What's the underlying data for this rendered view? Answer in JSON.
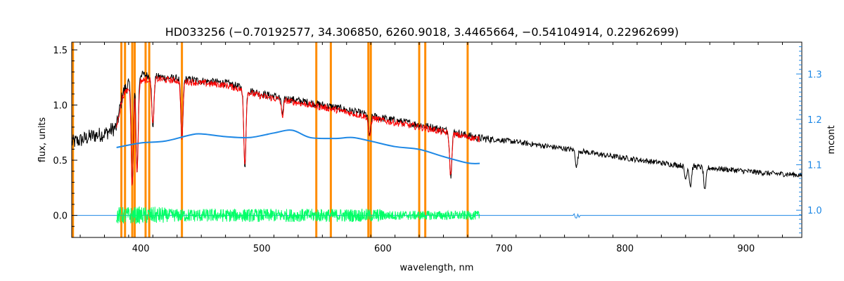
{
  "chart_data": {
    "type": "line",
    "title": "HD033256   (−0.70192577, 34.306850, 6260.9018, 3.4465664, −0.54104914, 0.22962699)",
    "xlabel": "wavelength, nm",
    "ylabel": "flux, units",
    "y2label": "mcont",
    "xlim": [
      343,
      946
    ],
    "ylim": [
      -0.2,
      1.57
    ],
    "y2lim": [
      0.94,
      1.37
    ],
    "x_ticks": [
      400,
      500,
      600,
      700,
      800,
      900
    ],
    "y_ticks": [
      0.0,
      0.5,
      1.0,
      1.5
    ],
    "y2_ticks": [
      1.0,
      1.1,
      1.2,
      1.3
    ],
    "x_tick_labels": [
      "400",
      "500",
      "600",
      "700",
      "800",
      "900"
    ],
    "y_tick_labels": [
      "0.0",
      "0.5",
      "1.0",
      "1.5"
    ],
    "y2_tick_labels": [
      "1.0",
      "1.1",
      "1.2",
      "1.3"
    ],
    "colors": {
      "observed": "#000000",
      "model": "#ff0000",
      "continuum": "#1e88e5",
      "residual": "#00ff66",
      "masks": "#ff8c00",
      "right_axis": "#1e88e5"
    },
    "mask_lines_nm": [
      344,
      384,
      387,
      393,
      395,
      404,
      407,
      434,
      545,
      557,
      588,
      590,
      630,
      635,
      670
    ],
    "series": [
      {
        "name": "observed flux",
        "axis": "left",
        "x": [
          343,
          350,
          360,
          370,
          380,
          385,
          390,
          395,
          400,
          410,
          420,
          430,
          440,
          450,
          460,
          470,
          480,
          490,
          500,
          520,
          540,
          560,
          580,
          600,
          620,
          640,
          660,
          680,
          700,
          720,
          740,
          760,
          780,
          800,
          820,
          840,
          860,
          880,
          900,
          920,
          940,
          946
        ],
        "values": [
          0.66,
          0.68,
          0.72,
          0.74,
          0.8,
          1.1,
          1.2,
          1.25,
          1.28,
          1.26,
          1.25,
          1.24,
          1.23,
          1.22,
          1.21,
          1.2,
          1.17,
          1.13,
          1.1,
          1.06,
          1.02,
          0.98,
          0.93,
          0.88,
          0.84,
          0.8,
          0.75,
          0.7,
          0.68,
          0.65,
          0.62,
          0.59,
          0.55,
          0.52,
          0.49,
          0.46,
          0.44,
          0.42,
          0.4,
          0.38,
          0.37,
          0.36
        ]
      },
      {
        "name": "model fit",
        "axis": "left",
        "x": [
          380,
          385,
          390,
          395,
          400,
          410,
          420,
          430,
          440,
          450,
          460,
          470,
          480,
          490,
          500,
          520,
          540,
          560,
          580,
          600,
          620,
          640,
          660,
          680
        ],
        "values": [
          0.8,
          1.08,
          1.15,
          1.19,
          1.22,
          1.24,
          1.23,
          1.22,
          1.21,
          1.2,
          1.19,
          1.18,
          1.15,
          1.11,
          1.08,
          1.04,
          1.0,
          0.96,
          0.91,
          0.86,
          0.82,
          0.78,
          0.73,
          0.69
        ]
      },
      {
        "name": "continuum (mcont)",
        "axis": "right",
        "x": [
          380,
          400,
          420,
          440,
          450,
          470,
          490,
          510,
          525,
          540,
          560,
          575,
          590,
          610,
          630,
          650,
          670,
          680
        ],
        "values": [
          1.138,
          1.148,
          1.152,
          1.165,
          1.168,
          1.162,
          1.16,
          1.17,
          1.176,
          1.16,
          1.158,
          1.16,
          1.152,
          1.14,
          1.134,
          1.118,
          1.104,
          1.103
        ]
      },
      {
        "name": "residual",
        "axis": "left",
        "x": [
          380,
          680
        ],
        "values": [
          0.0,
          0.0
        ],
        "scatter_amplitude": 0.06
      }
    ],
    "absorption_lines": [
      {
        "x": 393,
        "depth": 0.95
      },
      {
        "x": 397,
        "depth": 0.85
      },
      {
        "x": 410,
        "depth": 0.45
      },
      {
        "x": 434,
        "depth": 0.55
      },
      {
        "x": 486,
        "depth": 0.7
      },
      {
        "x": 517,
        "depth": 0.15
      },
      {
        "x": 589,
        "depth": 0.2
      },
      {
        "x": 656,
        "depth": 0.4
      },
      {
        "x": 760,
        "depth": 0.15
      },
      {
        "x": 850,
        "depth": 0.12
      },
      {
        "x": 854,
        "depth": 0.18
      },
      {
        "x": 866,
        "depth": 0.22
      }
    ]
  }
}
